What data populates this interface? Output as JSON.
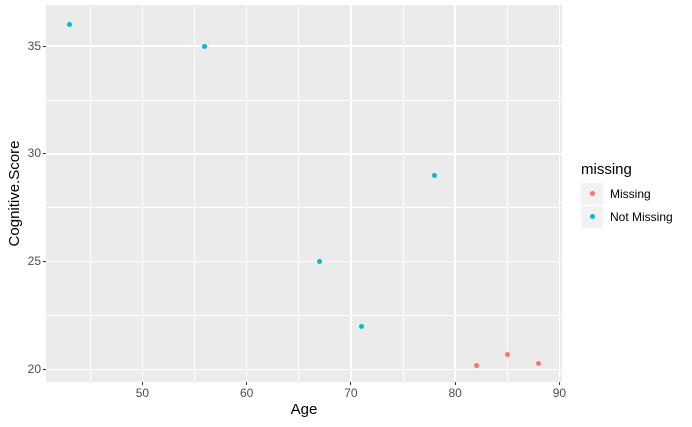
{
  "chart_data": {
    "type": "scatter",
    "title": "",
    "xlabel": "Age",
    "ylabel": "Cognitive.Score",
    "x_ticks": [
      50,
      60,
      70,
      80,
      90
    ],
    "y_ticks": [
      20,
      25,
      30,
      35
    ],
    "x_minor": [
      45,
      55,
      65,
      75,
      85
    ],
    "y_minor": [
      22.5,
      27.5,
      32.5
    ],
    "xlim": [
      40.75,
      90.25
    ],
    "ylim": [
      19.43,
      36.9
    ],
    "grid": true,
    "legend": {
      "title": "missing",
      "position": "right",
      "entries": [
        {
          "label": "Missing",
          "color": "#F8766D"
        },
        {
          "label": "Not Missing",
          "color": "#00BFC4"
        }
      ]
    },
    "series": [
      {
        "name": "Missing",
        "color": "#F8766D",
        "points": [
          {
            "x": 82,
            "y": 20.2
          },
          {
            "x": 85,
            "y": 20.7
          },
          {
            "x": 88,
            "y": 20.3
          }
        ]
      },
      {
        "name": "Not Missing",
        "color": "#00BFC4",
        "points": [
          {
            "x": 43,
            "y": 36
          },
          {
            "x": 56,
            "y": 35
          },
          {
            "x": 67,
            "y": 25
          },
          {
            "x": 71,
            "y": 22
          },
          {
            "x": 78,
            "y": 29
          }
        ]
      }
    ],
    "colors": {
      "panel_bg": "#EBEBEB",
      "grid": "#FFFFFF",
      "axis_text": "#4D4D4D",
      "axis_title": "#000000",
      "legend_key_bg": "#F2F2F2",
      "tick_mark": "#333333"
    }
  }
}
